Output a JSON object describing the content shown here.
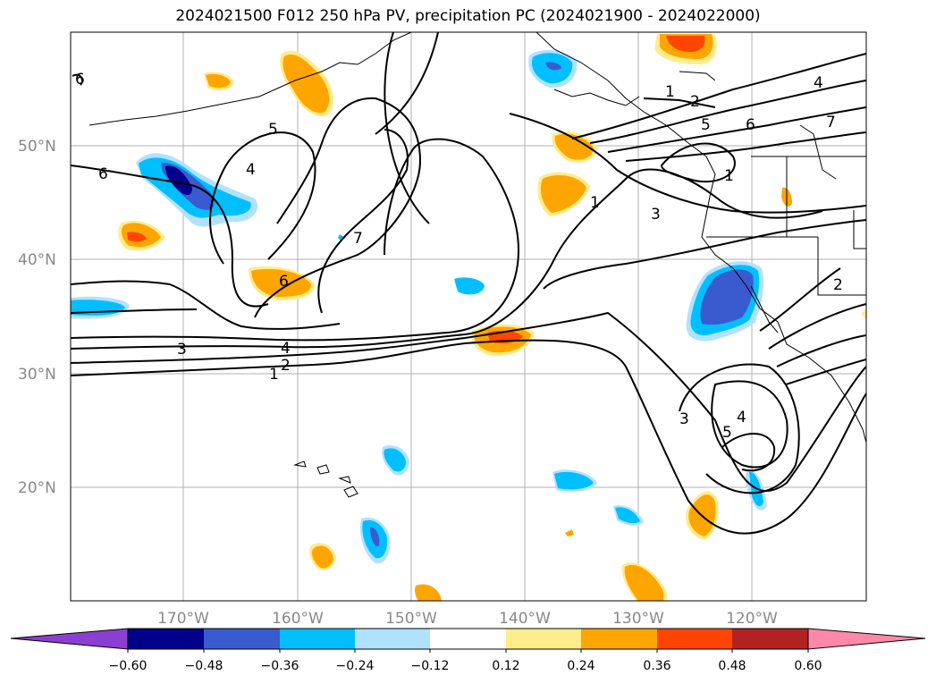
{
  "title": "2024021500 F012 250 hPa PV, precipitation PC (2024021900 - 2024022000)",
  "map": {
    "lat_labels": [
      "50°N",
      "40°N",
      "30°N",
      "20°N"
    ],
    "lon_labels": [
      "170°W",
      "160°W",
      "150°W",
      "140°W",
      "130°W",
      "120°W"
    ],
    "contour_labels": [
      "6",
      "5",
      "4",
      "7",
      "6",
      "4",
      "3",
      "2",
      "1",
      "1",
      "2",
      "5",
      "6",
      "4",
      "7",
      "1",
      "1",
      "3",
      "2",
      "3",
      "4",
      "5",
      "6"
    ]
  },
  "colorbar": {
    "colors": [
      "#8a3fd1",
      "#00008b",
      "#3a5bd0",
      "#00bfff",
      "#b0e2ff",
      "#ffffff",
      "#ffec8b",
      "#ffa500",
      "#ff4500",
      "#b22222",
      "#ff88aa"
    ],
    "labels": [
      "−0.60",
      "−0.48",
      "−0.36",
      "−0.24",
      "−0.12",
      "0.12",
      "0.24",
      "0.36",
      "0.48",
      "0.60"
    ]
  },
  "colors": {
    "land": "#ffffff",
    "grid": "#b0b0b0",
    "contour": "#000000"
  }
}
